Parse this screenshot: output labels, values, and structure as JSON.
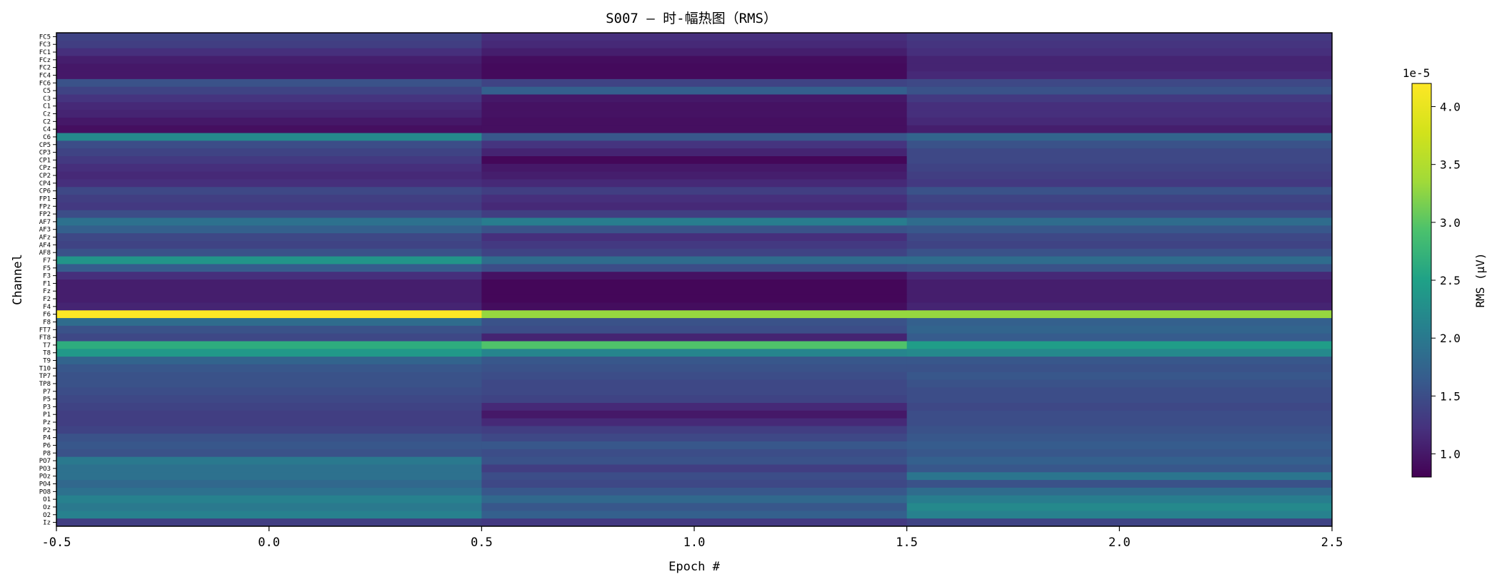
{
  "chart_data": {
    "type": "heatmap",
    "title": "S007 — 时-幅热图（RMS）",
    "xlabel": "Epoch #",
    "ylabel": "Channel",
    "xlim": [
      -0.5,
      2.5
    ],
    "x_ticks": [
      "-0.5",
      "0.0",
      "0.5",
      "1.0",
      "1.5",
      "2.0",
      "2.5"
    ],
    "x": [
      0,
      1,
      2
    ],
    "grid": false,
    "colormap": "viridis",
    "colorbar": {
      "label": "RMS (μV)",
      "scale_label": "1e-5",
      "range": [
        0.8,
        4.2
      ],
      "ticks": [
        "1.0",
        "1.5",
        "2.0",
        "2.5",
        "3.0",
        "3.5",
        "4.0"
      ]
    },
    "channels": [
      "FC5",
      "FC3",
      "FC1",
      "FCz",
      "FC2",
      "FC4",
      "FC6",
      "C5",
      "C3",
      "C1",
      "Cz",
      "C2",
      "C4",
      "C6",
      "CP5",
      "CP3",
      "CP1",
      "CPz",
      "CP2",
      "CP4",
      "CP6",
      "FP1",
      "FPz",
      "FP2",
      "AF7",
      "AF3",
      "AFz",
      "AF4",
      "AF8",
      "F7",
      "F5",
      "F3",
      "F1",
      "Fz",
      "F2",
      "F4",
      "F6",
      "F8",
      "FT7",
      "FT8",
      "T7",
      "T8",
      "T9",
      "T10",
      "TP7",
      "TP8",
      "P7",
      "P5",
      "P3",
      "P1",
      "Pz",
      "P2",
      "P4",
      "P6",
      "P8",
      "PO7",
      "PO3",
      "POz",
      "PO4",
      "PO8",
      "O1",
      "Oz",
      "O2",
      "Iz"
    ],
    "values": [
      [
        1.4,
        1.2,
        1.3
      ],
      [
        1.35,
        1.15,
        1.25
      ],
      [
        1.2,
        1.05,
        1.2
      ],
      [
        1.05,
        0.9,
        1.1
      ],
      [
        1.0,
        0.88,
        1.1
      ],
      [
        1.0,
        0.88,
        1.15
      ],
      [
        1.55,
        1.4,
        1.45
      ],
      [
        1.4,
        1.7,
        1.55
      ],
      [
        1.25,
        1.0,
        1.3
      ],
      [
        1.15,
        0.95,
        1.2
      ],
      [
        1.1,
        0.95,
        1.2
      ],
      [
        1.0,
        0.92,
        1.15
      ],
      [
        0.92,
        0.92,
        1.05
      ],
      [
        2.2,
        1.6,
        1.75
      ],
      [
        1.5,
        1.25,
        1.55
      ],
      [
        1.4,
        1.1,
        1.45
      ],
      [
        1.3,
        0.85,
        1.45
      ],
      [
        1.2,
        1.0,
        1.4
      ],
      [
        1.15,
        1.05,
        1.35
      ],
      [
        1.2,
        1.15,
        1.3
      ],
      [
        1.45,
        1.35,
        1.55
      ],
      [
        1.35,
        1.2,
        1.4
      ],
      [
        1.3,
        1.15,
        1.35
      ],
      [
        1.5,
        1.35,
        1.5
      ],
      [
        1.9,
        2.05,
        1.85
      ],
      [
        1.7,
        1.55,
        1.6
      ],
      [
        1.45,
        1.2,
        1.45
      ],
      [
        1.4,
        1.3,
        1.4
      ],
      [
        1.55,
        1.4,
        1.55
      ],
      [
        2.35,
        1.85,
        1.85
      ],
      [
        1.65,
        1.5,
        1.55
      ],
      [
        1.2,
        0.95,
        1.15
      ],
      [
        1.05,
        0.85,
        1.05
      ],
      [
        1.05,
        0.85,
        1.05
      ],
      [
        1.05,
        0.85,
        1.05
      ],
      [
        1.1,
        0.9,
        1.1
      ],
      [
        4.2,
        3.3,
        3.3
      ],
      [
        1.85,
        1.55,
        1.7
      ],
      [
        1.55,
        1.5,
        1.75
      ],
      [
        1.45,
        1.1,
        1.65
      ],
      [
        2.65,
        2.95,
        2.45
      ],
      [
        2.4,
        2.15,
        2.2
      ],
      [
        1.75,
        1.6,
        1.6
      ],
      [
        1.6,
        1.55,
        1.55
      ],
      [
        1.55,
        1.5,
        1.6
      ],
      [
        1.55,
        1.45,
        1.55
      ],
      [
        1.5,
        1.45,
        1.5
      ],
      [
        1.45,
        1.4,
        1.5
      ],
      [
        1.4,
        1.15,
        1.45
      ],
      [
        1.35,
        1.0,
        1.5
      ],
      [
        1.35,
        1.15,
        1.5
      ],
      [
        1.4,
        1.35,
        1.55
      ],
      [
        1.55,
        1.45,
        1.6
      ],
      [
        1.6,
        1.6,
        1.65
      ],
      [
        1.55,
        1.5,
        1.6
      ],
      [
        2.0,
        1.55,
        1.7
      ],
      [
        1.9,
        1.35,
        1.6
      ],
      [
        1.9,
        1.5,
        1.95
      ],
      [
        1.8,
        1.45,
        1.55
      ],
      [
        1.9,
        1.6,
        1.85
      ],
      [
        2.1,
        1.8,
        2.05
      ],
      [
        2.0,
        1.6,
        2.2
      ],
      [
        2.1,
        1.7,
        2.1
      ],
      [
        1.35,
        1.3,
        1.4
      ]
    ]
  }
}
